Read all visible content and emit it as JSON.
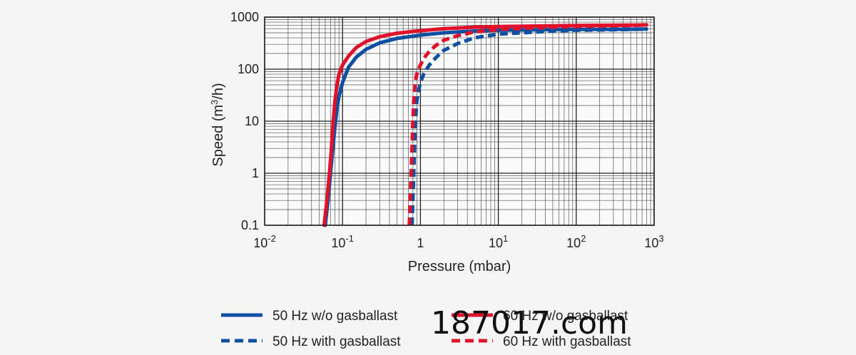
{
  "chart_data": {
    "type": "line",
    "title": "",
    "xlabel": "Pressure (mbar)",
    "ylabel": "Speed (m3/h)",
    "x_scale": "log",
    "y_scale": "log",
    "xlim": [
      0.01,
      1000
    ],
    "ylim": [
      0.1,
      1000
    ],
    "grid": true,
    "legend_position": "bottom",
    "x_ticks": [
      0.01,
      0.1,
      1,
      10,
      100,
      1000
    ],
    "x_tick_labels": [
      {
        "base": "10",
        "exp": "-2"
      },
      {
        "base": "10",
        "exp": "-1"
      },
      {
        "base": "1",
        "exp": ""
      },
      {
        "base": "10",
        "exp": "1"
      },
      {
        "base": "10",
        "exp": "2"
      },
      {
        "base": "10",
        "exp": "3"
      }
    ],
    "y_ticks": [
      0.1,
      1,
      10,
      100,
      1000
    ],
    "y_tick_labels": [
      "0.1",
      "1",
      "10",
      "100",
      "1000"
    ],
    "series": [
      {
        "name": "50 Hz w/o gasballast",
        "color": "#0d4fa0",
        "dash": "solid",
        "x": [
          0.06,
          0.065,
          0.07,
          0.075,
          0.08,
          0.085,
          0.09,
          0.1,
          0.11,
          0.12,
          0.15,
          0.2,
          0.3,
          0.5,
          1,
          2,
          5,
          10,
          50,
          100,
          500,
          800
        ],
        "y": [
          0.1,
          0.3,
          1,
          3,
          8,
          18,
          30,
          55,
          80,
          110,
          170,
          240,
          320,
          390,
          450,
          500,
          540,
          560,
          575,
          580,
          585,
          590
        ]
      },
      {
        "name": "60 Hz w/o gasballast",
        "color": "#e0112b",
        "dash": "solid",
        "x": [
          0.058,
          0.063,
          0.068,
          0.072,
          0.076,
          0.08,
          0.085,
          0.09,
          0.1,
          0.12,
          0.15,
          0.2,
          0.3,
          0.5,
          1,
          2,
          5,
          10,
          50,
          100,
          500,
          800
        ],
        "y": [
          0.1,
          0.3,
          1,
          3,
          10,
          25,
          50,
          80,
          120,
          180,
          260,
          340,
          420,
          490,
          550,
          600,
          640,
          660,
          680,
          690,
          700,
          710
        ]
      },
      {
        "name": "50 Hz with gasballast",
        "color": "#0d4fa0",
        "dash": "dashed",
        "x": [
          0.78,
          0.8,
          0.82,
          0.84,
          0.86,
          0.88,
          0.9,
          0.95,
          1.0,
          1.1,
          1.3,
          1.6,
          2,
          3,
          5,
          10,
          50,
          100,
          500,
          800
        ],
        "y": [
          0.1,
          0.3,
          1,
          3,
          8,
          15,
          25,
          40,
          55,
          80,
          120,
          170,
          230,
          310,
          400,
          470,
          540,
          560,
          580,
          590
        ]
      },
      {
        "name": "60 Hz with gasballast",
        "color": "#e0112b",
        "dash": "dashed",
        "x": [
          0.72,
          0.74,
          0.76,
          0.78,
          0.8,
          0.82,
          0.85,
          0.88,
          0.92,
          1.0,
          1.1,
          1.3,
          1.6,
          2,
          3,
          5,
          10,
          50,
          100,
          500,
          800
        ],
        "y": [
          0.1,
          0.3,
          1,
          3,
          10,
          25,
          45,
          70,
          90,
          120,
          160,
          220,
          290,
          360,
          440,
          520,
          580,
          640,
          660,
          690,
          710
        ]
      }
    ]
  },
  "legend": [
    {
      "label": "50 Hz w/o gasballast",
      "color": "#0d4fa0",
      "dash": "solid"
    },
    {
      "label": "50 Hz with gasballast",
      "color": "#0d4fa0",
      "dash": "dashed"
    },
    {
      "label": "60 Hz w/o gasballast",
      "color": "#e0112b",
      "dash": "solid"
    },
    {
      "label": "60 Hz with gasballast",
      "color": "#e0112b",
      "dash": "dashed"
    }
  ],
  "watermark": "187017.com"
}
